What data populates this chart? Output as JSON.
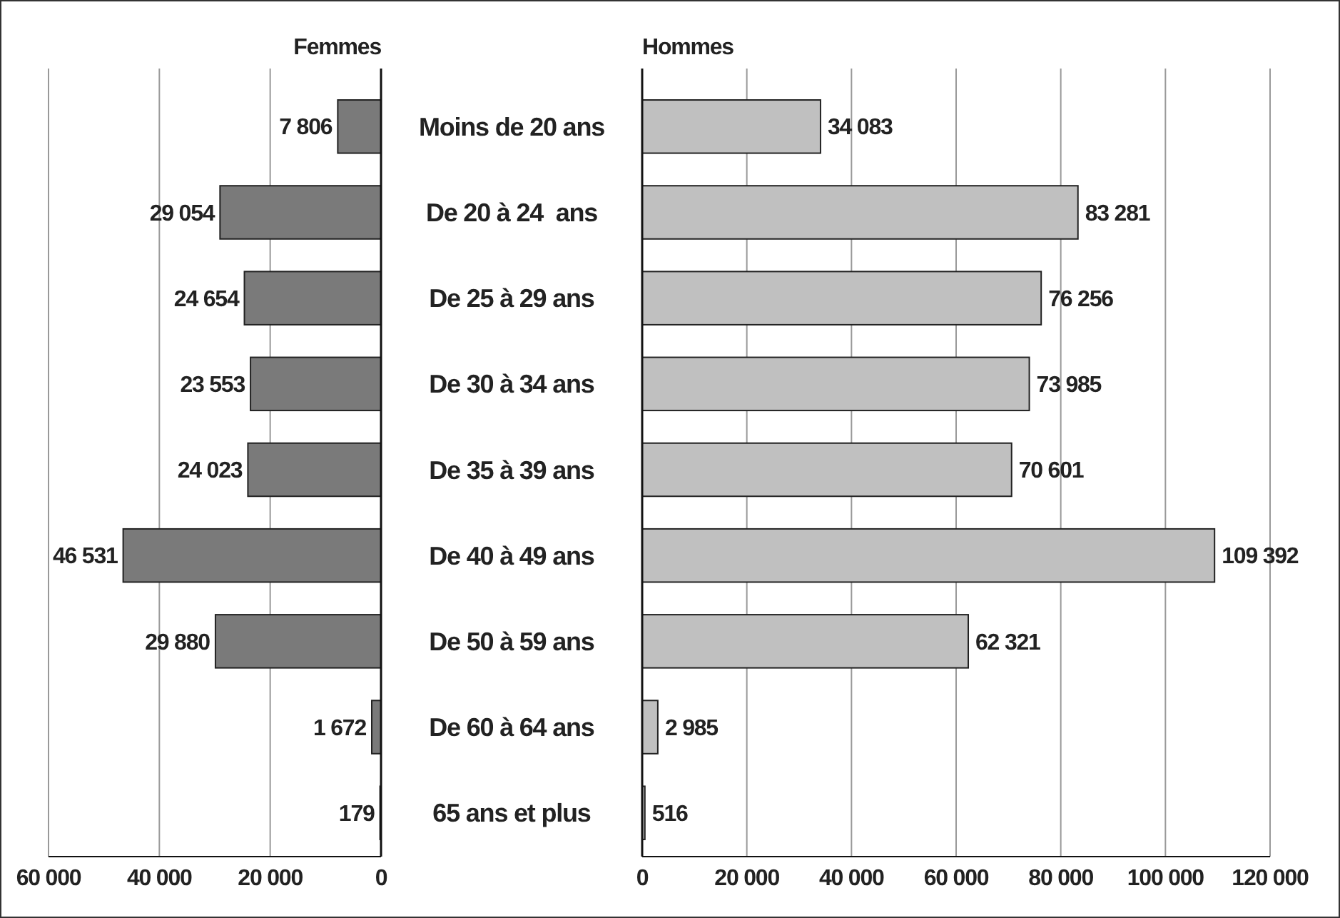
{
  "chart_data": [
    {
      "type": "bar",
      "orientation": "horizontal",
      "title": "Femmes",
      "categories": [
        "Moins de 20 ans",
        "De 20 à 24  ans",
        "De 25 à 29 ans",
        "De 30 à 34 ans",
        "De 35 à 39 ans",
        "De 40 à 49 ans",
        "De 50 à 59 ans",
        "De 60 à 64 ans",
        "65 ans et plus"
      ],
      "values": [
        7806,
        29054,
        24654,
        23553,
        24023,
        46531,
        29880,
        1672,
        179
      ],
      "value_labels": [
        "7 806",
        "29 054",
        "24 654",
        "23 553",
        "24 023",
        "46 531",
        "29 880",
        "1 672",
        "179"
      ],
      "color": "#7a7a7a",
      "xlim": [
        60000,
        0
      ],
      "xticks": [
        {
          "value": 60000,
          "label": "60 000"
        },
        {
          "value": 40000,
          "label": "40 000"
        },
        {
          "value": 20000,
          "label": "20 000"
        },
        0
      ],
      "grid": "x"
    },
    {
      "type": "bar",
      "orientation": "horizontal",
      "title": "Hommes",
      "categories": [
        "Moins de 20 ans",
        "De 20 à 24  ans",
        "De 25 à 29 ans",
        "De 30 à 34 ans",
        "De 35 à 39 ans",
        "De 40 à 49 ans",
        "De 50 à 59 ans",
        "De 60 à 64 ans",
        "65 ans et plus"
      ],
      "values": [
        34083,
        83281,
        76256,
        73985,
        70601,
        109392,
        62321,
        2985,
        516
      ],
      "value_labels": [
        "34 083",
        "83 281",
        "76 256",
        "73 985",
        "70 601",
        "109 392",
        "62 321",
        "2 985",
        "516"
      ],
      "color": "#c0c0c0",
      "xlim": [
        0,
        120000
      ],
      "xticks": [
        0,
        {
          "value": 20000,
          "label": "20 000"
        },
        {
          "value": 40000,
          "label": "40 000"
        },
        {
          "value": 60000,
          "label": "60 000"
        },
        {
          "value": 80000,
          "label": "80 000"
        },
        {
          "value": 100000,
          "label": "100 000"
        },
        {
          "value": 120000,
          "label": "120 000"
        }
      ],
      "grid": "x",
      "tick_labels": "x"
    }
  ]
}
